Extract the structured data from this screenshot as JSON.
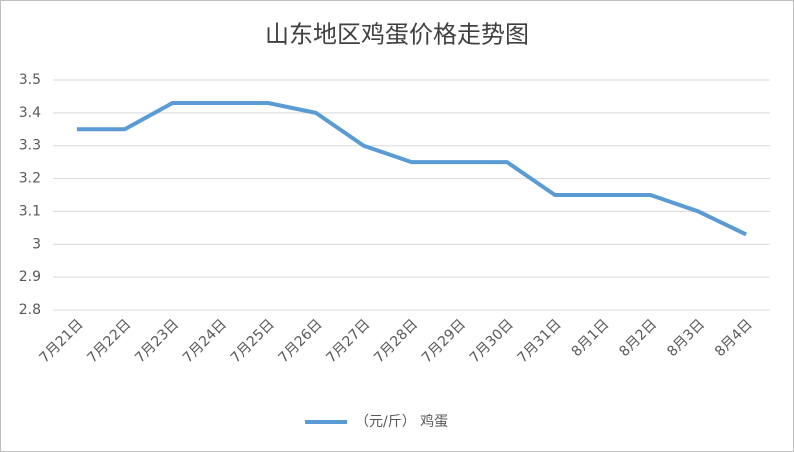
{
  "chart_data": {
    "type": "line",
    "title": "山东地区鸡蛋价格走势图",
    "categories": [
      "7月21日",
      "7月22日",
      "7月23日",
      "7月24日",
      "7月25日",
      "7月26日",
      "7月27日",
      "7月28日",
      "7月29日",
      "7月30日",
      "7月31日",
      "8月1日",
      "8月2日",
      "8月3日",
      "8月4日"
    ],
    "series": [
      {
        "name": "（元/斤） 鸡蛋",
        "color": "#5b9bd5",
        "values": [
          3.35,
          3.35,
          3.43,
          3.43,
          3.43,
          3.4,
          3.3,
          3.25,
          3.25,
          3.25,
          3.15,
          3.15,
          3.15,
          3.1,
          3.03
        ]
      }
    ],
    "ylim": [
      2.8,
      3.5
    ],
    "yticks": [
      2.8,
      2.9,
      3,
      3.1,
      3.2,
      3.3,
      3.4,
      3.5
    ],
    "grid": true,
    "legend": "bottom"
  }
}
